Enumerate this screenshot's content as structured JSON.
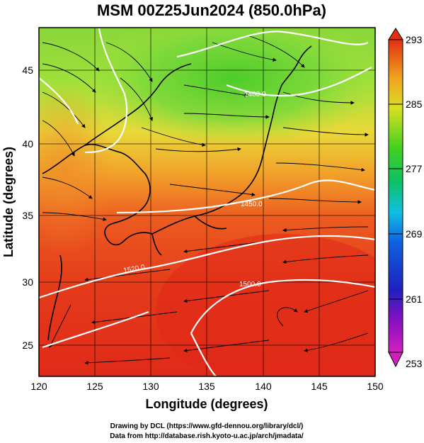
{
  "title": "MSM 00Z25Jun2024 (850.0hPa)",
  "xlabel": "Longitude (degrees)",
  "ylabel": "Latitude  (degrees)",
  "x_ticks": [
    "120",
    "125",
    "130",
    "135",
    "140",
    "145",
    "150"
  ],
  "y_ticks": [
    "25",
    "30",
    "35",
    "40",
    "45"
  ],
  "colorbar": {
    "ticks": [
      "293",
      "285",
      "277",
      "269",
      "261",
      "253"
    ],
    "range": [
      253,
      293
    ]
  },
  "contour_labels": [
    "1400.0",
    "1450.0",
    "1520.0",
    "1500.0"
  ],
  "credits": {
    "line1": "Drawing by DCL (https://www.gfd-dennou.org/library/dcl/)",
    "line2": "Data from http://database.rish.kyoto-u.ac.jp/arch/jmadata/"
  },
  "colors": {
    "warm": "#e43a1a",
    "mid": "#f29a2a",
    "yellow": "#d8e03a",
    "green": "#5ad02a",
    "contour": "#ffffff",
    "streamline": "#000000"
  },
  "chart_data": {
    "type": "map",
    "variable": "temperature (K) with streamlines and height contours",
    "level": "850.0hPa",
    "x_range": [
      120,
      150
    ],
    "y_range": [
      22.5,
      47.5
    ],
    "grid": true
  }
}
